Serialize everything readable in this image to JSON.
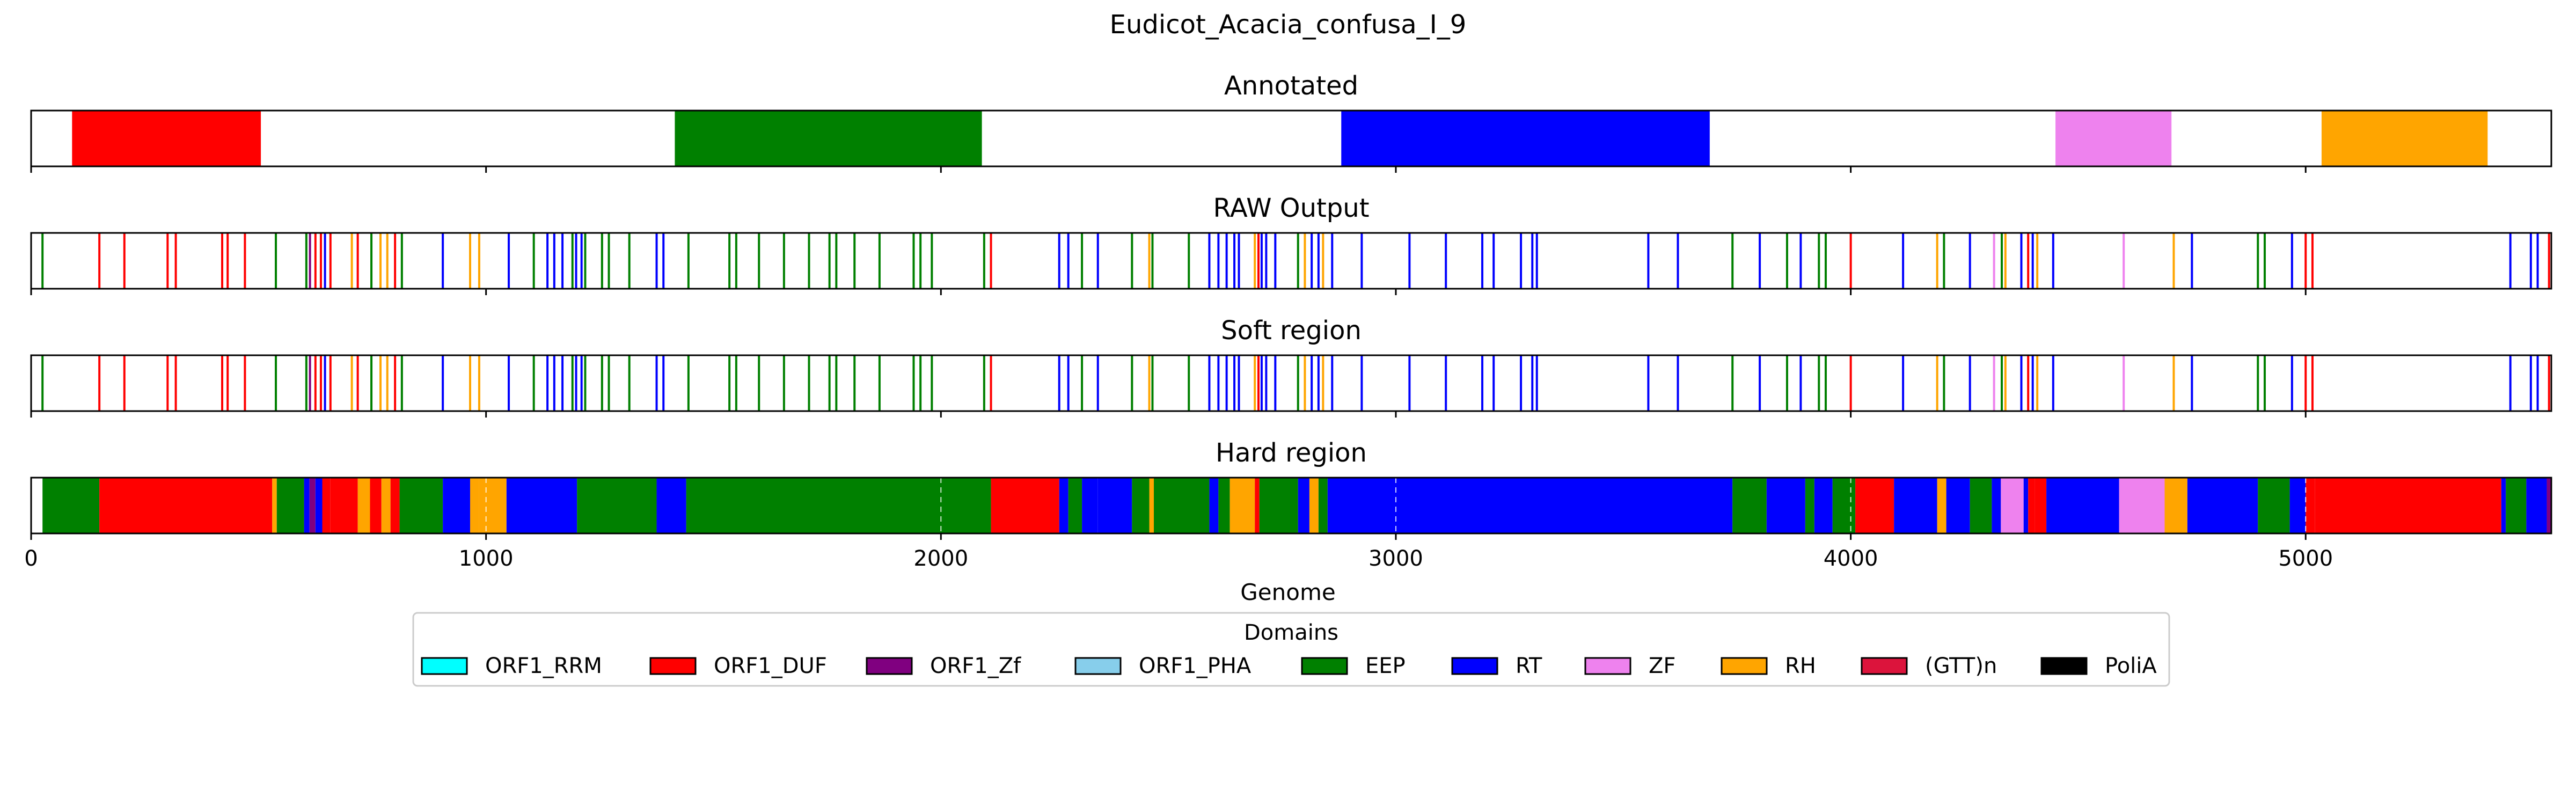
{
  "chart_data": {
    "type": "genome-track",
    "title": "Eudicot_Acacia_confusa_I_9",
    "xlabel": "Genome",
    "xlim": [
      0,
      5540
    ],
    "xticks": [
      0,
      1000,
      2000,
      3000,
      4000,
      5000
    ],
    "xtick_labels": [
      "0",
      "1000",
      "2000",
      "3000",
      "4000",
      "5000"
    ],
    "tracks": [
      {
        "title": "Annotated",
        "kind": "blocks",
        "segments": [
          {
            "start": 90,
            "end": 505,
            "domain": "ORF1_DUF"
          },
          {
            "start": 1415,
            "end": 2090,
            "domain": "EEP"
          },
          {
            "start": 2880,
            "end": 3690,
            "domain": "RT"
          },
          {
            "start": 4450,
            "end": 4705,
            "domain": "ZF"
          },
          {
            "start": 5035,
            "end": 5400,
            "domain": "RH"
          }
        ]
      },
      {
        "title": "RAW Output",
        "kind": "lines",
        "marks": [
          {
            "x": 25,
            "domain": "EEP"
          },
          {
            "x": 150,
            "domain": "ORF1_DUF"
          },
          {
            "x": 205,
            "domain": "ORF1_DUF"
          },
          {
            "x": 300,
            "domain": "ORF1_DUF"
          },
          {
            "x": 318,
            "domain": "ORF1_DUF"
          },
          {
            "x": 420,
            "domain": "ORF1_DUF"
          },
          {
            "x": 432,
            "domain": "ORF1_DUF"
          },
          {
            "x": 470,
            "domain": "ORF1_DUF"
          },
          {
            "x": 538,
            "domain": "EEP"
          },
          {
            "x": 605,
            "domain": "EEP"
          },
          {
            "x": 613,
            "domain": "ORF1_Zf"
          },
          {
            "x": 625,
            "domain": "ORF1_DUF"
          },
          {
            "x": 637,
            "domain": "ORF1_DUF"
          },
          {
            "x": 646,
            "domain": "RT"
          },
          {
            "x": 658,
            "domain": "ORF1_DUF"
          },
          {
            "x": 705,
            "domain": "RH"
          },
          {
            "x": 718,
            "domain": "ORF1_DUF"
          },
          {
            "x": 748,
            "domain": "EEP"
          },
          {
            "x": 768,
            "domain": "RH"
          },
          {
            "x": 783,
            "domain": "RH"
          },
          {
            "x": 800,
            "domain": "ORF1_DUF"
          },
          {
            "x": 815,
            "domain": "EEP"
          },
          {
            "x": 905,
            "domain": "RT"
          },
          {
            "x": 965,
            "domain": "RH"
          },
          {
            "x": 985,
            "domain": "RH"
          },
          {
            "x": 1050,
            "domain": "RT"
          },
          {
            "x": 1105,
            "domain": "EEP"
          },
          {
            "x": 1135,
            "domain": "RT"
          },
          {
            "x": 1150,
            "domain": "RT"
          },
          {
            "x": 1168,
            "domain": "RT"
          },
          {
            "x": 1190,
            "domain": "EEP"
          },
          {
            "x": 1198,
            "domain": "RT"
          },
          {
            "x": 1210,
            "domain": "RT"
          },
          {
            "x": 1218,
            "domain": "EEP"
          },
          {
            "x": 1255,
            "domain": "EEP"
          },
          {
            "x": 1270,
            "domain": "EEP"
          },
          {
            "x": 1315,
            "domain": "EEP"
          },
          {
            "x": 1375,
            "domain": "RT"
          },
          {
            "x": 1390,
            "domain": "RT"
          },
          {
            "x": 1445,
            "domain": "EEP"
          },
          {
            "x": 1535,
            "domain": "EEP"
          },
          {
            "x": 1550,
            "domain": "EEP"
          },
          {
            "x": 1600,
            "domain": "EEP"
          },
          {
            "x": 1655,
            "domain": "EEP"
          },
          {
            "x": 1710,
            "domain": "EEP"
          },
          {
            "x": 1755,
            "domain": "EEP"
          },
          {
            "x": 1770,
            "domain": "EEP"
          },
          {
            "x": 1810,
            "domain": "EEP"
          },
          {
            "x": 1865,
            "domain": "EEP"
          },
          {
            "x": 1940,
            "domain": "EEP"
          },
          {
            "x": 1955,
            "domain": "EEP"
          },
          {
            "x": 1980,
            "domain": "EEP"
          },
          {
            "x": 2095,
            "domain": "EEP"
          },
          {
            "x": 2110,
            "domain": "ORF1_DUF"
          },
          {
            "x": 2260,
            "domain": "RT"
          },
          {
            "x": 2280,
            "domain": "RT"
          },
          {
            "x": 2310,
            "domain": "EEP"
          },
          {
            "x": 2345,
            "domain": "RT"
          },
          {
            "x": 2420,
            "domain": "EEP"
          },
          {
            "x": 2458,
            "domain": "RH"
          },
          {
            "x": 2465,
            "domain": "EEP"
          },
          {
            "x": 2545,
            "domain": "EEP"
          },
          {
            "x": 2590,
            "domain": "RT"
          },
          {
            "x": 2610,
            "domain": "RT"
          },
          {
            "x": 2628,
            "domain": "RT"
          },
          {
            "x": 2645,
            "domain": "RT"
          },
          {
            "x": 2655,
            "domain": "RT"
          },
          {
            "x": 2690,
            "domain": "RH"
          },
          {
            "x": 2698,
            "domain": "ORF1_DUF"
          },
          {
            "x": 2705,
            "domain": "RT"
          },
          {
            "x": 2715,
            "domain": "RT"
          },
          {
            "x": 2735,
            "domain": "RT"
          },
          {
            "x": 2785,
            "domain": "EEP"
          },
          {
            "x": 2800,
            "domain": "RH"
          },
          {
            "x": 2815,
            "domain": "RT"
          },
          {
            "x": 2830,
            "domain": "RT"
          },
          {
            "x": 2840,
            "domain": "RH"
          },
          {
            "x": 2860,
            "domain": "RT"
          },
          {
            "x": 2925,
            "domain": "RT"
          },
          {
            "x": 3030,
            "domain": "RT"
          },
          {
            "x": 3110,
            "domain": "RT"
          },
          {
            "x": 3190,
            "domain": "RT"
          },
          {
            "x": 3215,
            "domain": "RT"
          },
          {
            "x": 3275,
            "domain": "RT"
          },
          {
            "x": 3300,
            "domain": "RT"
          },
          {
            "x": 3310,
            "domain": "RT"
          },
          {
            "x": 3555,
            "domain": "RT"
          },
          {
            "x": 3620,
            "domain": "RT"
          },
          {
            "x": 3740,
            "domain": "EEP"
          },
          {
            "x": 3800,
            "domain": "RT"
          },
          {
            "x": 3860,
            "domain": "EEP"
          },
          {
            "x": 3890,
            "domain": "RT"
          },
          {
            "x": 3930,
            "domain": "EEP"
          },
          {
            "x": 3945,
            "domain": "EEP"
          },
          {
            "x": 4000,
            "domain": "ORF1_DUF"
          },
          {
            "x": 4115,
            "domain": "RT"
          },
          {
            "x": 4190,
            "domain": "RH"
          },
          {
            "x": 4205,
            "domain": "EEP"
          },
          {
            "x": 4262,
            "domain": "RT"
          },
          {
            "x": 4315,
            "domain": "ZF"
          },
          {
            "x": 4332,
            "domain": "EEP"
          },
          {
            "x": 4340,
            "domain": "RH"
          },
          {
            "x": 4375,
            "domain": "RT"
          },
          {
            "x": 4390,
            "domain": "ORF1_DUF"
          },
          {
            "x": 4400,
            "domain": "RT"
          },
          {
            "x": 4410,
            "domain": "RH"
          },
          {
            "x": 4445,
            "domain": "RT"
          },
          {
            "x": 4600,
            "domain": "ZF"
          },
          {
            "x": 4710,
            "domain": "RH"
          },
          {
            "x": 4750,
            "domain": "RT"
          },
          {
            "x": 4895,
            "domain": "EEP"
          },
          {
            "x": 4910,
            "domain": "EEP"
          },
          {
            "x": 4970,
            "domain": "RT"
          },
          {
            "x": 5000,
            "domain": "ORF1_DUF"
          },
          {
            "x": 5015,
            "domain": "ORF1_DUF"
          },
          {
            "x": 5450,
            "domain": "RT"
          },
          {
            "x": 5495,
            "domain": "RT"
          },
          {
            "x": 5510,
            "domain": "RT"
          },
          {
            "x": 5535,
            "domain": "ORF1_DUF"
          }
        ]
      },
      {
        "title": "Soft region",
        "kind": "lines",
        "marks_from": "RAW Output"
      },
      {
        "title": "Hard region",
        "kind": "blocks",
        "gridlines": true,
        "segments": [
          {
            "start": 25,
            "end": 150,
            "domain": "EEP"
          },
          {
            "start": 150,
            "end": 530,
            "domain": "ORF1_DUF"
          },
          {
            "start": 530,
            "end": 540,
            "domain": "RH"
          },
          {
            "start": 540,
            "end": 600,
            "domain": "EEP"
          },
          {
            "start": 600,
            "end": 612,
            "domain": "RT"
          },
          {
            "start": 612,
            "end": 625,
            "domain": "ORF1_Zf"
          },
          {
            "start": 625,
            "end": 640,
            "domain": "RT"
          },
          {
            "start": 640,
            "end": 658,
            "domain": "ORF1_DUF"
          },
          {
            "start": 658,
            "end": 718,
            "domain": "ORF1_DUF"
          },
          {
            "start": 718,
            "end": 745,
            "domain": "RH"
          },
          {
            "start": 745,
            "end": 770,
            "domain": "ORF1_DUF"
          },
          {
            "start": 770,
            "end": 790,
            "domain": "RH"
          },
          {
            "start": 790,
            "end": 810,
            "domain": "ORF1_DUF"
          },
          {
            "start": 810,
            "end": 905,
            "domain": "EEP"
          },
          {
            "start": 905,
            "end": 965,
            "domain": "RT"
          },
          {
            "start": 965,
            "end": 985,
            "domain": "RH"
          },
          {
            "start": 985,
            "end": 1045,
            "domain": "RH"
          },
          {
            "start": 1045,
            "end": 1200,
            "domain": "RT"
          },
          {
            "start": 1200,
            "end": 1375,
            "domain": "EEP"
          },
          {
            "start": 1375,
            "end": 1440,
            "domain": "RT"
          },
          {
            "start": 1440,
            "end": 2110,
            "domain": "EEP"
          },
          {
            "start": 2110,
            "end": 2260,
            "domain": "ORF1_DUF"
          },
          {
            "start": 2260,
            "end": 2280,
            "domain": "RT"
          },
          {
            "start": 2280,
            "end": 2310,
            "domain": "EEP"
          },
          {
            "start": 2310,
            "end": 2345,
            "domain": "RT"
          },
          {
            "start": 2345,
            "end": 2420,
            "domain": "RT"
          },
          {
            "start": 2420,
            "end": 2458,
            "domain": "EEP"
          },
          {
            "start": 2458,
            "end": 2468,
            "domain": "RH"
          },
          {
            "start": 2468,
            "end": 2590,
            "domain": "EEP"
          },
          {
            "start": 2590,
            "end": 2610,
            "domain": "RT"
          },
          {
            "start": 2610,
            "end": 2635,
            "domain": "EEP"
          },
          {
            "start": 2635,
            "end": 2690,
            "domain": "RH"
          },
          {
            "start": 2690,
            "end": 2700,
            "domain": "ORF1_DUF"
          },
          {
            "start": 2700,
            "end": 2785,
            "domain": "EEP"
          },
          {
            "start": 2785,
            "end": 2810,
            "domain": "RT"
          },
          {
            "start": 2810,
            "end": 2830,
            "domain": "RH"
          },
          {
            "start": 2830,
            "end": 2850,
            "domain": "EEP"
          },
          {
            "start": 2850,
            "end": 3740,
            "domain": "RT"
          },
          {
            "start": 3740,
            "end": 3815,
            "domain": "EEP"
          },
          {
            "start": 3815,
            "end": 3900,
            "domain": "RT"
          },
          {
            "start": 3900,
            "end": 3920,
            "domain": "EEP"
          },
          {
            "start": 3920,
            "end": 3960,
            "domain": "RT"
          },
          {
            "start": 3960,
            "end": 4010,
            "domain": "EEP"
          },
          {
            "start": 4010,
            "end": 4095,
            "domain": "ORF1_DUF"
          },
          {
            "start": 4095,
            "end": 4190,
            "domain": "RT"
          },
          {
            "start": 4190,
            "end": 4210,
            "domain": "RH"
          },
          {
            "start": 4210,
            "end": 4262,
            "domain": "RT"
          },
          {
            "start": 4262,
            "end": 4310,
            "domain": "EEP"
          },
          {
            "start": 4310,
            "end": 4330,
            "domain": "RT"
          },
          {
            "start": 4330,
            "end": 4380,
            "domain": "ZF"
          },
          {
            "start": 4380,
            "end": 4390,
            "domain": "RT"
          },
          {
            "start": 4390,
            "end": 4405,
            "domain": "ORF1_DUF"
          },
          {
            "start": 4405,
            "end": 4430,
            "domain": "ORF1_DUF"
          },
          {
            "start": 4430,
            "end": 4590,
            "domain": "RT"
          },
          {
            "start": 4590,
            "end": 4690,
            "domain": "ZF"
          },
          {
            "start": 4690,
            "end": 4740,
            "domain": "RH"
          },
          {
            "start": 4740,
            "end": 4895,
            "domain": "RT"
          },
          {
            "start": 4895,
            "end": 4965,
            "domain": "EEP"
          },
          {
            "start": 4965,
            "end": 5000,
            "domain": "RT"
          },
          {
            "start": 5000,
            "end": 5020,
            "domain": "ORF1_DUF"
          },
          {
            "start": 5020,
            "end": 5430,
            "domain": "ORF1_DUF"
          },
          {
            "start": 5430,
            "end": 5440,
            "domain": "RT"
          },
          {
            "start": 5440,
            "end": 5485,
            "domain": "EEP"
          },
          {
            "start": 5485,
            "end": 5530,
            "domain": "RT"
          },
          {
            "start": 5530,
            "end": 5540,
            "domain": "ORF1_Zf"
          }
        ]
      }
    ],
    "legend": {
      "title": "Domains",
      "placement": "bottom-center",
      "entries": [
        {
          "label": "ORF1_RRM",
          "color": "#00ffff"
        },
        {
          "label": "ORF1_DUF",
          "color": "#ff0000"
        },
        {
          "label": "ORF1_Zf",
          "color": "#800080"
        },
        {
          "label": "ORF1_PHA",
          "color": "#87ceeb"
        },
        {
          "label": "EEP",
          "color": "#008000"
        },
        {
          "label": "RT",
          "color": "#0000ff"
        },
        {
          "label": "ZF",
          "color": "#ee82ee"
        },
        {
          "label": "RH",
          "color": "#ffa500"
        },
        {
          "label": "(GTT)n",
          "color": "#dc143c"
        },
        {
          "label": "PoliA",
          "color": "#000000"
        }
      ]
    }
  }
}
